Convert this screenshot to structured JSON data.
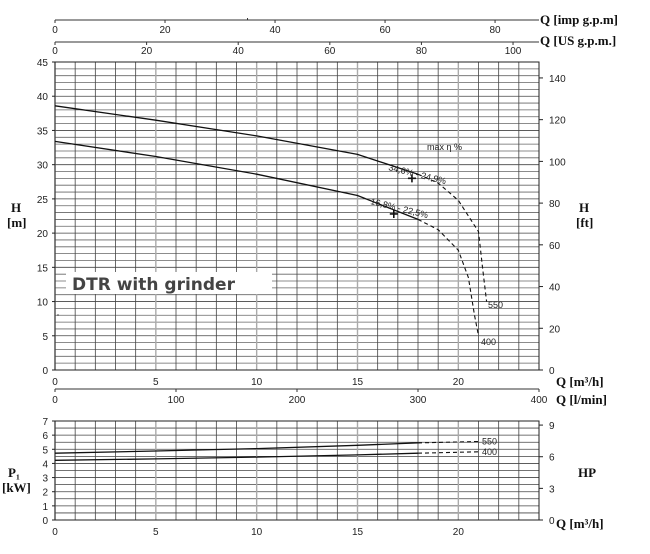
{
  "chart_data": [
    {
      "type": "line",
      "title": "DTR with grinder",
      "xlabel": "Q [m³/h]",
      "xlabel_secondary": [
        "Q [l/min]",
        "Q [US g.p.m.]",
        "Q [imp g.p.m]"
      ],
      "ylabel": "H [m]",
      "ylabel_right": "H [ft]",
      "xlim": [
        0,
        24
      ],
      "ylim": [
        0,
        45
      ],
      "ylim_right": [
        0,
        147.6
      ],
      "grid": true,
      "x_ticks": [
        0,
        5,
        10,
        15,
        20
      ],
      "y_ticks": [
        0,
        5,
        10,
        15,
        20,
        25,
        30,
        35,
        40,
        45
      ],
      "y_right_ticks": [
        0,
        20,
        40,
        60,
        80,
        100,
        120,
        140
      ],
      "lmin_ticks": [
        0,
        100,
        200,
        300,
        400
      ],
      "usgpm_ticks": [
        0,
        20,
        40,
        60,
        80,
        100
      ],
      "impgpm_ticks": [
        0,
        20,
        40,
        60,
        80
      ],
      "annotation": "max η %",
      "series": [
        {
          "name": "550",
          "x": [
            0,
            5,
            10,
            15,
            18,
            19,
            20,
            21,
            21.2,
            21.4
          ],
          "y": [
            38.6,
            36.5,
            34.2,
            31.5,
            28.6,
            27.3,
            24.8,
            20.2,
            15.0,
            10.0
          ],
          "solid_until": 18,
          "efficiency_point": {
            "x": 17.7,
            "y": 28.0,
            "label": "34,6% - 24,9%"
          }
        },
        {
          "name": "400",
          "x": [
            0,
            5,
            10,
            15,
            18,
            19,
            20,
            20.5,
            20.8,
            21.0
          ],
          "y": [
            33.4,
            31.2,
            28.6,
            25.5,
            22.0,
            20.5,
            17.5,
            13.5,
            8.0,
            5.0
          ],
          "solid_until": 18,
          "efficiency_point": {
            "x": 16.8,
            "y": 22.8,
            "label": "16,8% - 22,5%"
          }
        }
      ]
    },
    {
      "type": "line",
      "xlabel": "Q [m³/h]",
      "ylabel": "P1 [kW]",
      "ylabel_right": "HP",
      "xlim": [
        0,
        24
      ],
      "ylim": [
        0,
        7
      ],
      "grid": true,
      "x_ticks": [
        0,
        5,
        10,
        15,
        20
      ],
      "y_ticks": [
        0,
        1,
        2,
        3,
        4,
        5,
        6,
        7
      ],
      "y_right_ticks": [
        0,
        3,
        6,
        9
      ],
      "series": [
        {
          "name": "550",
          "x": [
            0,
            5,
            10,
            15,
            18,
            21
          ],
          "y": [
            4.72,
            4.88,
            5.05,
            5.28,
            5.45,
            5.55
          ],
          "solid_until": 18
        },
        {
          "name": "400",
          "x": [
            0,
            5,
            10,
            15,
            18,
            21
          ],
          "y": [
            4.22,
            4.32,
            4.45,
            4.6,
            4.72,
            4.82
          ],
          "solid_until": 18
        }
      ]
    }
  ],
  "labels": {
    "title": "DTR with grinder",
    "h_m": "H",
    "h_m_unit": "[m]",
    "h_ft": "H",
    "h_ft_unit": "[ft]",
    "q_imp": "Q [imp g.p.m]",
    "q_us": "Q [US g.p.m.]",
    "q_m3h": "Q [m³/h]",
    "q_lmin": "Q [l/min]",
    "p1": "P₁",
    "p1_unit": "[kW]",
    "hp": "HP",
    "max_eta": "max η %",
    "eff_550": "34,6% - 24,9%",
    "eff_400": "16,8% - 22,5%",
    "curve_550": "550",
    "curve_400": "400"
  }
}
